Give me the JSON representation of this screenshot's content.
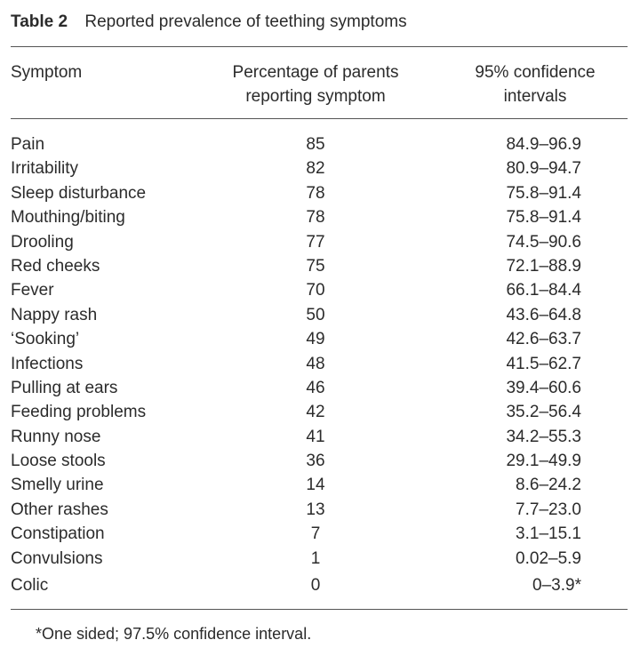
{
  "table": {
    "label": "Table 2",
    "title": "Reported prevalence of teething symptoms",
    "headers": {
      "symptom": "Symptom",
      "percentage_line1": "Percentage of parents",
      "percentage_line2": "reporting symptom",
      "ci_line1": "95% confidence",
      "ci_line2": "intervals"
    },
    "rows": [
      {
        "symptom": "Pain",
        "percentage": "85",
        "ci": "84.9–96.9"
      },
      {
        "symptom": "Irritability",
        "percentage": "82",
        "ci": "80.9–94.7"
      },
      {
        "symptom": "Sleep disturbance",
        "percentage": "78",
        "ci": "75.8–91.4"
      },
      {
        "symptom": "Mouthing/biting",
        "percentage": "78",
        "ci": "75.8–91.4"
      },
      {
        "symptom": "Drooling",
        "percentage": "77",
        "ci": "74.5–90.6"
      },
      {
        "symptom": "Red cheeks",
        "percentage": "75",
        "ci": "72.1–88.9"
      },
      {
        "symptom": "Fever",
        "percentage": "70",
        "ci": "66.1–84.4"
      },
      {
        "symptom": "Nappy rash",
        "percentage": "50",
        "ci": "43.6–64.8"
      },
      {
        "symptom": "‘Sooking’",
        "percentage": "49",
        "ci": "42.6–63.7"
      },
      {
        "symptom": "Infections",
        "percentage": "48",
        "ci": "41.5–62.7"
      },
      {
        "symptom": "Pulling at ears",
        "percentage": "46",
        "ci": "39.4–60.6"
      },
      {
        "symptom": "Feeding problems",
        "percentage": "42",
        "ci": "35.2–56.4"
      },
      {
        "symptom": "Runny nose",
        "percentage": "41",
        "ci": "34.2–55.3"
      },
      {
        "symptom": "Loose stools",
        "percentage": "36",
        "ci": "29.1–49.9"
      },
      {
        "symptom": "Smelly urine",
        "percentage": "14",
        "ci": "8.6–24.2"
      },
      {
        "symptom": "Other rashes",
        "percentage": "13",
        "ci": "7.7–23.0"
      },
      {
        "symptom": "Constipation",
        "percentage": "7",
        "ci": "3.1–15.1"
      },
      {
        "symptom": "Convulsions",
        "percentage": "1",
        "ci": "0.02–5.9"
      },
      {
        "symptom": "Colic",
        "percentage": "0",
        "ci": "0–3.9*"
      }
    ],
    "footnote": "*One sided; 97.5% confidence interval."
  }
}
